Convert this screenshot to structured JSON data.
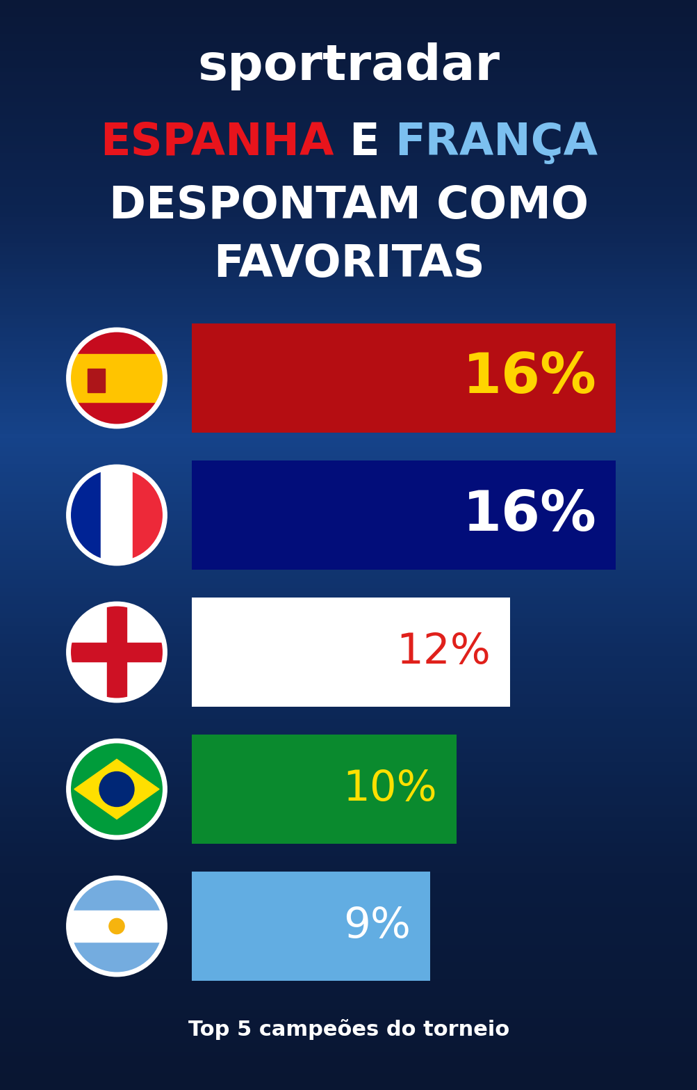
{
  "brand": "sportradar",
  "chart_data": {
    "type": "bar",
    "orientation": "horizontal",
    "title": "ESPANHA E FRANÇA DESPONTAM COMO FAVORITAS",
    "categories": [
      null,
      null,
      null,
      null,
      null
    ],
    "values": [
      16,
      16,
      12,
      10,
      9
    ],
    "value_labels": [
      "16%",
      "16%",
      "12%",
      "10%",
      "9%"
    ],
    "colors": [
      "#b50d12",
      "#020d7a",
      "#ffffff",
      "#0a8a2e",
      "#62ade2"
    ],
    "xlim": [
      0,
      16
    ],
    "data_labels": true,
    "tick_labels": false,
    "grid": false,
    "annotation": "Top 5 campeões do torneio"
  }
}
